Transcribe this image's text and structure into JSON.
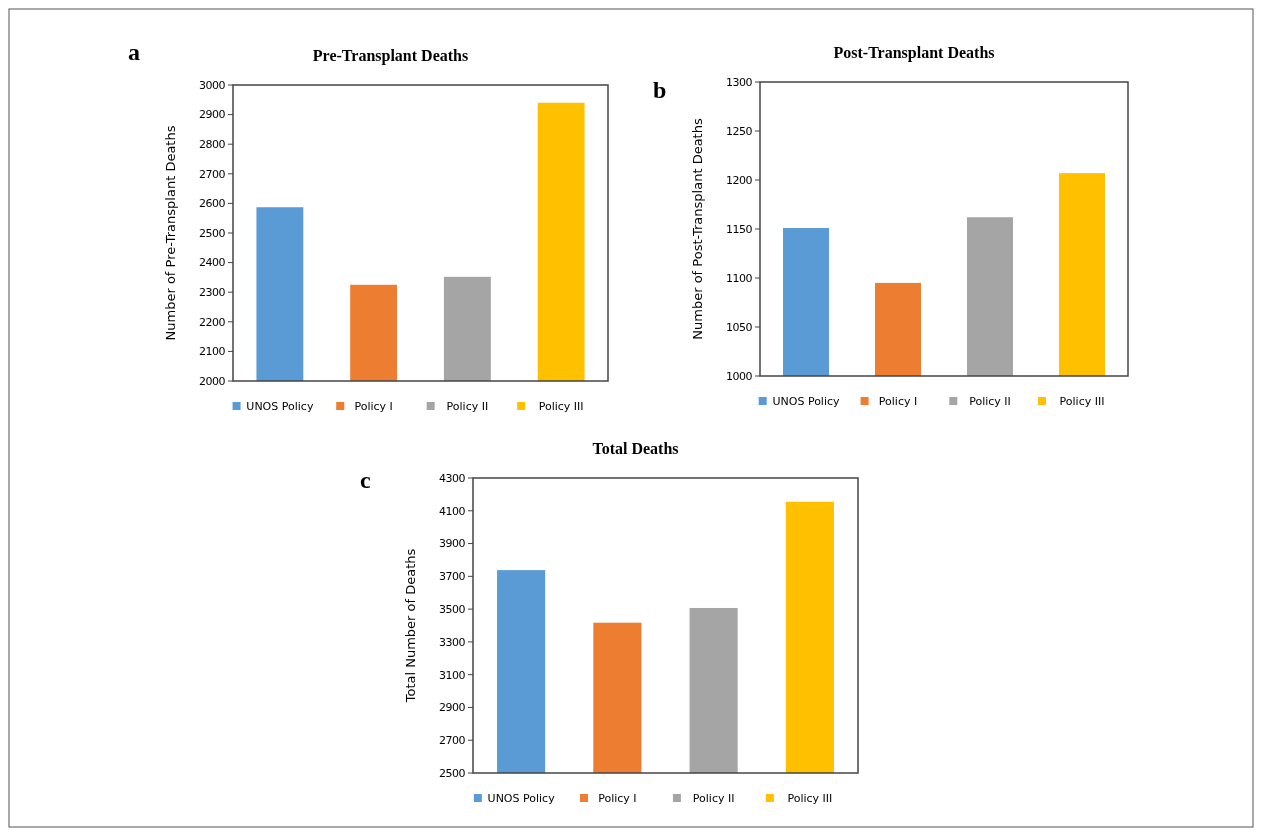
{
  "chart_data": [
    {
      "type": "bar",
      "title": "Pre-Transplant Deaths",
      "ylabel": "Number of Pre-Transplant Deaths",
      "annotations": [
        "a"
      ],
      "categories": [
        "UNOS Policy",
        "Policy I",
        "Policy II",
        "Policy III"
      ],
      "values": [
        2587,
        2325,
        2352,
        2940
      ],
      "colors": [
        "#5b9bd5",
        "#ed7d31",
        "#a5a5a5",
        "#ffc000"
      ],
      "ylim": [
        2000,
        3000
      ],
      "yticks": [
        2000,
        2100,
        2200,
        2300,
        2400,
        2500,
        2600,
        2700,
        2800,
        2900,
        3000
      ],
      "grid": false
    },
    {
      "type": "bar",
      "title": "Post-Transplant Deaths",
      "ylabel": "Number of Post-Transplant Deaths",
      "annotations": [
        "b"
      ],
      "categories": [
        "UNOS Policy",
        "Policy I",
        "Policy II",
        "Policy III"
      ],
      "values": [
        1151,
        1095,
        1162,
        1207
      ],
      "colors": [
        "#5b9bd5",
        "#ed7d31",
        "#a5a5a5",
        "#ffc000"
      ],
      "ylim": [
        1000,
        1300
      ],
      "yticks": [
        1000,
        1050,
        1100,
        1150,
        1200,
        1250,
        1300
      ],
      "grid": false
    },
    {
      "type": "bar",
      "title": "Total Deaths",
      "ylabel": "Total Number of Deaths",
      "annotations": [
        "c"
      ],
      "categories": [
        "UNOS Policy",
        "Policy I",
        "Policy II",
        "Policy III"
      ],
      "values": [
        3738,
        3417,
        3507,
        4155
      ],
      "colors": [
        "#5b9bd5",
        "#ed7d31",
        "#a5a5a5",
        "#ffc000"
      ],
      "ylim": [
        2500,
        4300
      ],
      "yticks": [
        2500,
        2700,
        2900,
        3100,
        3300,
        3500,
        3700,
        3900,
        4100,
        4300
      ],
      "grid": false
    }
  ]
}
